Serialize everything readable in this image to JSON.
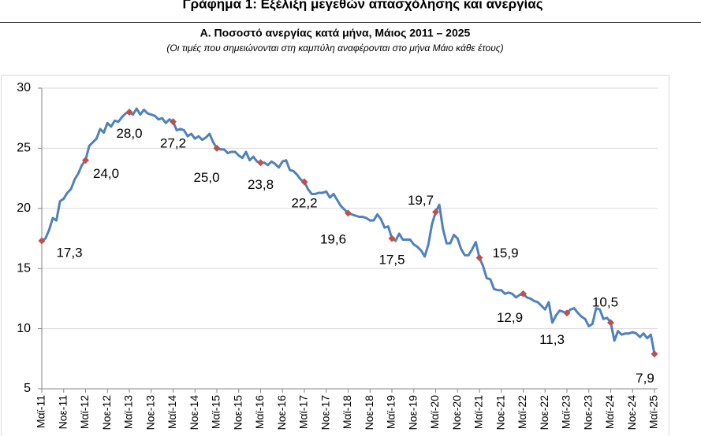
{
  "chart_data": {
    "type": "line",
    "title": "Γράφημα 1: Εξέλιξη μεγεθών απασχόλησης και ανεργίας",
    "subtitle": "Α. Ποσοστό ανεργίας κατά μήνα, Μάιος 2011 – 2025",
    "note": "(Οι τιμές που σημειώνονται στη καμπύλη αναφέρονται στο μήνα Μάιο κάθε έτους)",
    "categories": [
      "Μαϊ-11",
      null,
      null,
      null,
      null,
      null,
      "Νοε-11",
      null,
      null,
      null,
      null,
      null,
      "Μαϊ-12",
      null,
      null,
      null,
      null,
      null,
      "Νοε-12",
      null,
      null,
      null,
      null,
      null,
      "Μαϊ-13",
      null,
      null,
      null,
      null,
      null,
      "Νοε-13",
      null,
      null,
      null,
      null,
      null,
      "Μαϊ-14",
      null,
      null,
      null,
      null,
      null,
      "Νοε-14",
      null,
      null,
      null,
      null,
      null,
      "Μαϊ-15",
      null,
      null,
      null,
      null,
      null,
      "Νοε-15",
      null,
      null,
      null,
      null,
      null,
      "Μαϊ-16",
      null,
      null,
      null,
      null,
      null,
      "Νοε-16",
      null,
      null,
      null,
      null,
      null,
      "Μαϊ-17",
      null,
      null,
      null,
      null,
      null,
      "Νοε-17",
      null,
      null,
      null,
      null,
      null,
      "Μαϊ-18",
      null,
      null,
      null,
      null,
      null,
      "Νοε-18",
      null,
      null,
      null,
      null,
      null,
      "Μαϊ-19",
      null,
      null,
      null,
      null,
      null,
      "Νοε-19",
      null,
      null,
      null,
      null,
      null,
      "Μαϊ-20",
      null,
      null,
      null,
      null,
      null,
      "Νοε-20",
      null,
      null,
      null,
      null,
      null,
      "Μαϊ-21",
      null,
      null,
      null,
      null,
      null,
      "Νοε-21",
      null,
      null,
      null,
      null,
      null,
      "Μαϊ-22",
      null,
      null,
      null,
      null,
      null,
      "Νοε-22",
      null,
      null,
      null,
      null,
      null,
      "Μαϊ-23",
      null,
      null,
      null,
      null,
      null,
      "Νοε-23",
      null,
      null,
      null,
      null,
      null,
      "Μαϊ-24",
      null,
      null,
      null,
      null,
      null,
      "Νοε-24",
      null,
      null,
      null,
      null,
      null,
      "Μαϊ-25"
    ],
    "values": [
      17.3,
      17.5,
      18.2,
      19.2,
      19.0,
      20.6,
      20.8,
      21.3,
      21.6,
      22.4,
      22.9,
      23.6,
      24.0,
      25.2,
      25.5,
      25.8,
      26.6,
      26.3,
      27.1,
      26.8,
      27.3,
      27.2,
      27.6,
      27.9,
      28.0,
      27.8,
      28.3,
      27.8,
      28.2,
      27.9,
      27.8,
      27.7,
      27.4,
      27.5,
      27.1,
      27.4,
      27.2,
      26.5,
      26.6,
      26.5,
      26.0,
      26.2,
      25.8,
      26.0,
      25.7,
      25.9,
      26.2,
      25.5,
      25.0,
      24.9,
      24.9,
      24.6,
      24.7,
      24.7,
      24.4,
      24.2,
      24.7,
      24.0,
      24.3,
      23.9,
      23.8,
      23.8,
      23.6,
      23.9,
      23.7,
      23.4,
      23.9,
      24.0,
      23.2,
      23.1,
      22.8,
      22.4,
      22.2,
      21.6,
      21.2,
      21.2,
      21.3,
      21.3,
      21.4,
      20.9,
      21.2,
      20.7,
      20.2,
      19.9,
      19.6,
      19.5,
      19.4,
      19.3,
      19.3,
      19.2,
      19.0,
      19.0,
      19.5,
      19.1,
      18.4,
      18.5,
      17.5,
      17.3,
      17.9,
      17.4,
      17.4,
      17.4,
      17.0,
      16.8,
      16.5,
      16.0,
      17.0,
      18.7,
      19.7,
      20.3,
      18.3,
      17.1,
      17.1,
      17.8,
      17.5,
      16.6,
      16.1,
      16.1,
      16.6,
      17.2,
      15.9,
      15.2,
      14.2,
      14.1,
      13.3,
      13.2,
      13.2,
      12.9,
      13.0,
      12.9,
      12.6,
      12.8,
      12.9,
      12.6,
      12.5,
      12.3,
      12.2,
      11.9,
      11.6,
      12.2,
      10.5,
      11.1,
      11.5,
      11.4,
      11.3,
      11.6,
      11.7,
      11.3,
      11.0,
      10.8,
      10.2,
      10.4,
      11.7,
      11.6,
      10.8,
      10.9,
      10.5,
      9.0,
      9.8,
      9.5,
      9.6,
      9.6,
      9.7,
      9.6,
      9.3,
      9.6,
      9.2,
      9.5,
      7.9
    ],
    "value_labels": [
      "17,3",
      null,
      null,
      null,
      null,
      null,
      null,
      null,
      null,
      null,
      null,
      null,
      "24,0",
      null,
      null,
      null,
      null,
      null,
      null,
      null,
      null,
      null,
      null,
      null,
      "28,0",
      null,
      null,
      null,
      null,
      null,
      null,
      null,
      null,
      null,
      null,
      null,
      "27,2",
      null,
      null,
      null,
      null,
      null,
      null,
      null,
      null,
      null,
      null,
      null,
      "25,0",
      null,
      null,
      null,
      null,
      null,
      null,
      null,
      null,
      null,
      null,
      null,
      "23,8",
      null,
      null,
      null,
      null,
      null,
      null,
      null,
      null,
      null,
      null,
      null,
      "22,2",
      null,
      null,
      null,
      null,
      null,
      null,
      null,
      null,
      null,
      null,
      null,
      "19,6",
      null,
      null,
      null,
      null,
      null,
      null,
      null,
      null,
      null,
      null,
      null,
      "17,5",
      null,
      null,
      null,
      null,
      null,
      null,
      null,
      null,
      null,
      null,
      null,
      "19,7",
      null,
      null,
      null,
      null,
      null,
      null,
      null,
      null,
      null,
      null,
      null,
      "15,9",
      null,
      null,
      null,
      null,
      null,
      null,
      null,
      null,
      null,
      null,
      null,
      "12,9",
      null,
      null,
      null,
      null,
      null,
      null,
      null,
      null,
      null,
      null,
      null,
      "11,3",
      null,
      null,
      null,
      null,
      null,
      null,
      null,
      null,
      null,
      null,
      null,
      "10,5",
      null,
      null,
      null,
      null,
      null,
      null,
      null,
      null,
      null,
      null,
      null,
      "7,9"
    ],
    "color": "#4f81bd",
    "marker_color": "#c0504d",
    "ylim": [
      5,
      30
    ],
    "yticks": [
      5,
      10,
      15,
      20,
      25,
      30
    ],
    "grid": true
  }
}
